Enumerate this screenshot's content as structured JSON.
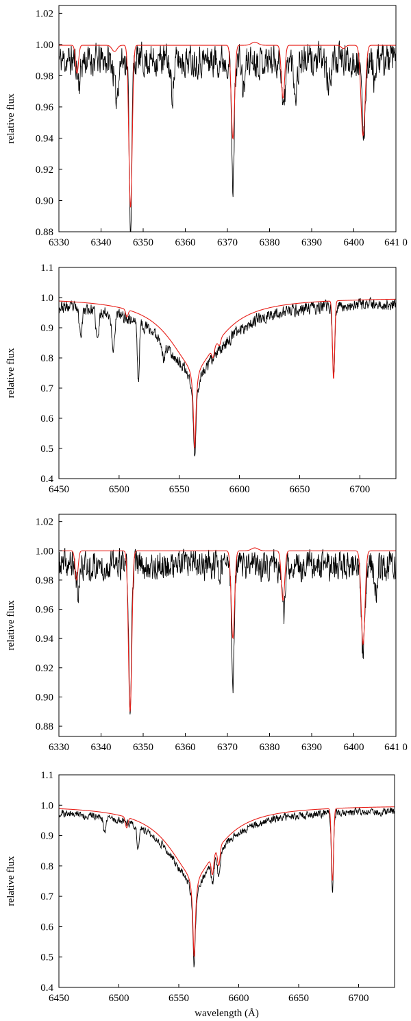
{
  "chart_data": [
    {
      "type": "line",
      "title": "",
      "xlabel": "",
      "ylabel": "relative flux",
      "xlim": [
        6330,
        6410
      ],
      "ylim": [
        0.88,
        1.025
      ],
      "xticks": [
        6330,
        6340,
        6350,
        6360,
        6370,
        6380,
        6390,
        6400,
        6410
      ],
      "yticks": [
        0.88,
        0.9,
        0.92,
        0.94,
        0.96,
        0.98,
        1.0,
        1.02
      ],
      "ytick_decimals": 2,
      "xtick_labels": [
        "6330",
        "6340",
        "6350",
        "6360",
        "6370",
        "6380",
        "6390",
        "6400",
        "641 0"
      ],
      "grid": false,
      "series": [
        {
          "color": "#000000",
          "kind": "observed",
          "noise": {
            "amp": 0.01,
            "base": 0.99,
            "seed": 11
          },
          "lines": [
            [
              6334.8,
              0.014,
              0.35
            ],
            [
              6343.6,
              0.024,
              0.45
            ],
            [
              6347.0,
              0.106,
              0.3
            ],
            [
              6356.9,
              0.02,
              0.4
            ],
            [
              6371.3,
              0.082,
              0.3
            ],
            [
              6373.8,
              0.02,
              0.35
            ],
            [
              6383.4,
              0.03,
              0.4
            ],
            [
              6386.2,
              0.02,
              0.4
            ],
            [
              6394.0,
              0.018,
              0.4
            ],
            [
              6402.3,
              0.048,
              0.4
            ],
            [
              6405.0,
              0.014,
              0.35
            ]
          ]
        },
        {
          "color": "#e8201a",
          "kind": "model",
          "base": 0.9995,
          "lines": [
            [
              6334.3,
              0.018,
              0.35
            ],
            [
              6343.2,
              0.004,
              0.6
            ],
            [
              6347.0,
              0.104,
              0.4
            ],
            [
              6371.3,
              0.06,
              0.4
            ],
            [
              6376.5,
              -0.002,
              0.8
            ],
            [
              6383.2,
              0.034,
              0.4
            ],
            [
              6397.5,
              0.002,
              0.5
            ],
            [
              6402.2,
              0.058,
              0.5
            ]
          ]
        }
      ]
    },
    {
      "type": "line",
      "title": "",
      "xlabel": "",
      "ylabel": "relative flux",
      "xlim": [
        6450,
        6730
      ],
      "ylim": [
        0.4,
        1.1
      ],
      "xticks": [
        6450,
        6500,
        6550,
        6600,
        6650,
        6700
      ],
      "yticks": [
        0.4,
        0.5,
        0.6,
        0.7,
        0.8,
        0.9,
        1.0,
        1.1
      ],
      "ytick_decimals": 1,
      "grid": false,
      "series": [
        {
          "color": "#000000",
          "kind": "observed",
          "noise": {
            "amp": 0.02,
            "base": 0.985,
            "seed": 23
          },
          "balmer": {
            "center": 6562.8,
            "depth": 0.52,
            "core": 1.4,
            "wing": 30
          },
          "lines": [
            [
              6468,
              0.08,
              1.2
            ],
            [
              6482,
              0.1,
              1.2
            ],
            [
              6495,
              0.12,
              1.2
            ],
            [
              6516,
              0.2,
              0.8
            ],
            [
              6537,
              0.06,
              1.0
            ],
            [
              6678.2,
              0.24,
              0.9
            ]
          ]
        },
        {
          "color": "#e8201a",
          "kind": "model",
          "base": 1.0,
          "balmer": {
            "center": 6562.8,
            "depth": 0.5,
            "core": 1.3,
            "wing": 26
          },
          "lines": [
            [
              6506.5,
              0.025,
              1.0
            ],
            [
              6578.1,
              0.03,
              1.0
            ],
            [
              6583.4,
              0.02,
              1.0
            ],
            [
              6678.2,
              0.26,
              0.9
            ]
          ]
        }
      ]
    },
    {
      "type": "line",
      "title": "",
      "xlabel": "",
      "ylabel": "relative flux",
      "xlim": [
        6330,
        6410
      ],
      "ylim": [
        0.873,
        1.025
      ],
      "xticks": [
        6330,
        6340,
        6350,
        6360,
        6370,
        6380,
        6390,
        6400,
        6410
      ],
      "yticks": [
        0.88,
        0.9,
        0.92,
        0.94,
        0.96,
        0.98,
        1.0,
        1.02
      ],
      "ytick_decimals": 2,
      "xtick_labels": [
        "6330",
        "6340",
        "6350",
        "6360",
        "6370",
        "6380",
        "6390",
        "6400",
        "641 0"
      ],
      "grid": false,
      "series": [
        {
          "color": "#000000",
          "kind": "observed",
          "noise": {
            "amp": 0.01,
            "base": 0.99,
            "seed": 37
          },
          "lines": [
            [
              6334.6,
              0.02,
              0.35
            ],
            [
              6346.9,
              0.106,
              0.3
            ],
            [
              6371.3,
              0.088,
              0.3
            ],
            [
              6383.3,
              0.035,
              0.4
            ],
            [
              6402.2,
              0.062,
              0.4
            ],
            [
              6405.3,
              0.016,
              0.35
            ]
          ]
        },
        {
          "color": "#e8201a",
          "kind": "model",
          "base": 1.0,
          "lines": [
            [
              6334.2,
              0.02,
              0.35
            ],
            [
              6346.9,
              0.11,
              0.4
            ],
            [
              6371.3,
              0.06,
              0.4
            ],
            [
              6376.5,
              -0.002,
              0.8
            ],
            [
              6383.2,
              0.034,
              0.4
            ],
            [
              6402.2,
              0.064,
              0.45
            ]
          ]
        }
      ]
    },
    {
      "type": "line",
      "title": "",
      "xlabel": "wavelength (Å)",
      "ylabel": "relative flux",
      "xlim": [
        6450,
        6730
      ],
      "ylim": [
        0.4,
        1.1
      ],
      "xticks": [
        6450,
        6500,
        6550,
        6600,
        6650,
        6700
      ],
      "yticks": [
        0.4,
        0.5,
        0.6,
        0.7,
        0.8,
        0.9,
        1.0,
        1.1
      ],
      "ytick_decimals": 1,
      "grid": false,
      "series": [
        {
          "color": "#000000",
          "kind": "observed",
          "noise": {
            "amp": 0.012,
            "base": 0.985,
            "seed": 51
          },
          "balmer": {
            "center": 6562.8,
            "depth": 0.52,
            "core": 1.3,
            "wing": 26
          },
          "lines": [
            [
              6488,
              0.05,
              1.0
            ],
            [
              6516,
              0.07,
              0.9
            ],
            [
              6578.1,
              0.07,
              1.0
            ],
            [
              6583.4,
              0.08,
              1.0
            ],
            [
              6678.2,
              0.26,
              0.9
            ]
          ]
        },
        {
          "color": "#e8201a",
          "kind": "model",
          "base": 1.0,
          "balmer": {
            "center": 6562.8,
            "depth": 0.5,
            "core": 1.3,
            "wing": 26
          },
          "lines": [
            [
              6506.5,
              0.035,
              1.0
            ],
            [
              6578.1,
              0.06,
              1.0
            ],
            [
              6583.4,
              0.06,
              1.0
            ],
            [
              6678.2,
              0.24,
              0.9
            ]
          ]
        }
      ]
    }
  ]
}
